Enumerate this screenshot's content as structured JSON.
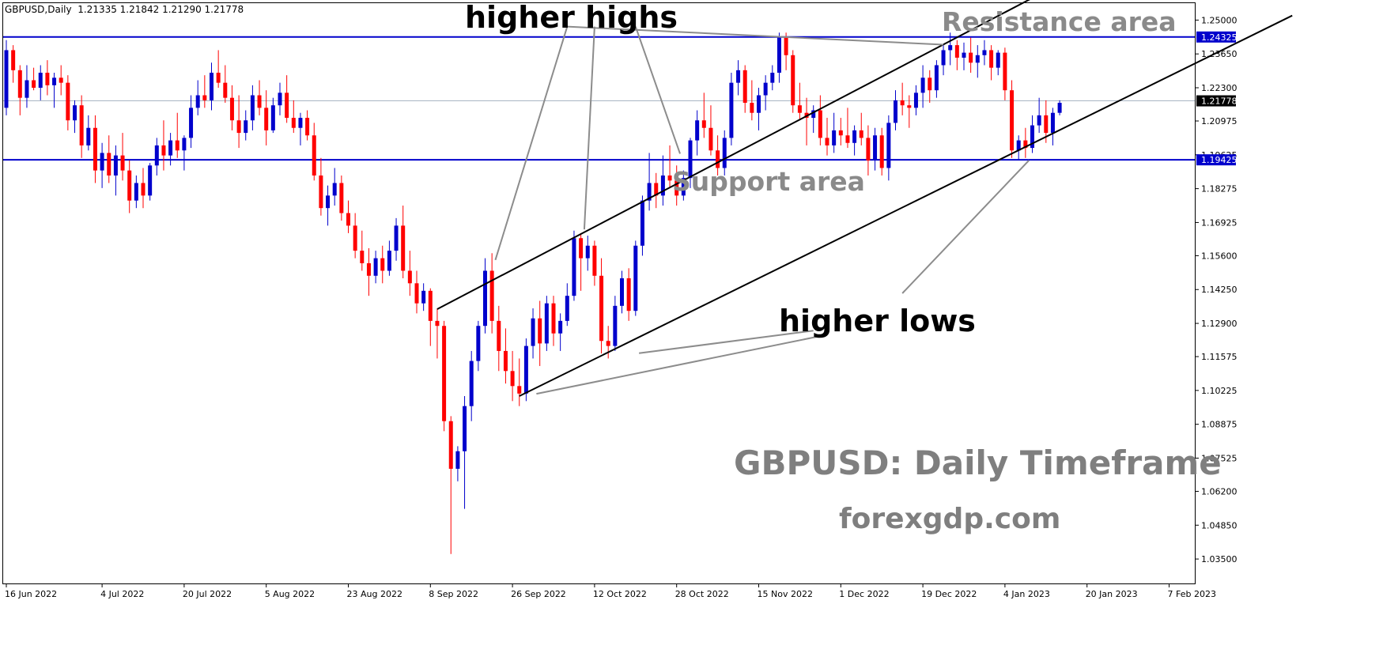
{
  "header": {
    "symbol": "GBPUSD,Daily",
    "ohlc": "1.21335 1.21842 1.21290 1.21778"
  },
  "annotations": {
    "higher_highs": "higher highs",
    "higher_lows": "higher lows",
    "resistance": "Resistance area",
    "support": "Support area",
    "title": "GBPUSD: Daily Timeframe",
    "site": "forexgdp.com"
  },
  "colors": {
    "bull": "#0000cc",
    "bear": "#ff0000",
    "level": "#0000cc",
    "trendline": "#000000",
    "pointer": "#8c8c8c",
    "price_line": "#a9b5c4"
  },
  "chart_data": {
    "type": "candlestick",
    "ylim": [
      1.02525,
      1.25675
    ],
    "y_ticks": [
      "1.25000",
      "1.23650",
      "1.22300",
      "1.20975",
      "1.19625",
      "1.18275",
      "1.16925",
      "1.15600",
      "1.14250",
      "1.12900",
      "1.11575",
      "1.10225",
      "1.08875",
      "1.07525",
      "1.06200",
      "1.04850",
      "1.03500"
    ],
    "x_ticks": [
      "16 Jun 2022",
      "4 Jul 2022",
      "20 Jul 2022",
      "5 Aug 2022",
      "23 Aug 2022",
      "8 Sep 2022",
      "26 Sep 2022",
      "12 Oct 2022",
      "28 Oct 2022",
      "15 Nov 2022",
      "1 Dec 2022",
      "19 Dec 2022",
      "4 Jan 2023",
      "20 Jan 2023",
      "7 Feb 2023"
    ],
    "x_tick_index": [
      0,
      14,
      26,
      38,
      50,
      62,
      74,
      86,
      98,
      110,
      122,
      134,
      146,
      158,
      170
    ],
    "levels": [
      {
        "label": "1.24325",
        "value": 1.24325
      },
      {
        "label": "1.19425",
        "value": 1.19425
      }
    ],
    "current_price": {
      "label": "1.21778",
      "value": 1.21778
    },
    "candles": [
      [
        1.215,
        1.242,
        1.212,
        1.238
      ],
      [
        1.238,
        1.24,
        1.225,
        1.23
      ],
      [
        1.23,
        1.232,
        1.212,
        1.219
      ],
      [
        1.219,
        1.232,
        1.215,
        1.226
      ],
      [
        1.226,
        1.231,
        1.222,
        1.223
      ],
      [
        1.223,
        1.232,
        1.218,
        1.229
      ],
      [
        1.229,
        1.234,
        1.22,
        1.224
      ],
      [
        1.224,
        1.229,
        1.215,
        1.227
      ],
      [
        1.227,
        1.232,
        1.22,
        1.225
      ],
      [
        1.225,
        1.228,
        1.206,
        1.21
      ],
      [
        1.21,
        1.218,
        1.205,
        1.216
      ],
      [
        1.216,
        1.22,
        1.195,
        1.2
      ],
      [
        1.2,
        1.212,
        1.198,
        1.207
      ],
      [
        1.207,
        1.212,
        1.185,
        1.19
      ],
      [
        1.19,
        1.201,
        1.183,
        1.197
      ],
      [
        1.197,
        1.204,
        1.185,
        1.188
      ],
      [
        1.188,
        1.2,
        1.18,
        1.196
      ],
      [
        1.196,
        1.205,
        1.186,
        1.19
      ],
      [
        1.19,
        1.194,
        1.173,
        1.178
      ],
      [
        1.178,
        1.188,
        1.175,
        1.185
      ],
      [
        1.185,
        1.191,
        1.175,
        1.18
      ],
      [
        1.18,
        1.193,
        1.178,
        1.192
      ],
      [
        1.192,
        1.203,
        1.188,
        1.2
      ],
      [
        1.2,
        1.21,
        1.19,
        1.196
      ],
      [
        1.196,
        1.205,
        1.192,
        1.202
      ],
      [
        1.202,
        1.213,
        1.195,
        1.198
      ],
      [
        1.198,
        1.204,
        1.19,
        1.203
      ],
      [
        1.203,
        1.22,
        1.199,
        1.215
      ],
      [
        1.215,
        1.226,
        1.212,
        1.22
      ],
      [
        1.22,
        1.228,
        1.215,
        1.218
      ],
      [
        1.218,
        1.233,
        1.214,
        1.229
      ],
      [
        1.229,
        1.238,
        1.223,
        1.225
      ],
      [
        1.225,
        1.232,
        1.217,
        1.219
      ],
      [
        1.219,
        1.224,
        1.206,
        1.21
      ],
      [
        1.21,
        1.22,
        1.199,
        1.205
      ],
      [
        1.205,
        1.214,
        1.202,
        1.21
      ],
      [
        1.21,
        1.224,
        1.206,
        1.22
      ],
      [
        1.22,
        1.226,
        1.212,
        1.215
      ],
      [
        1.215,
        1.222,
        1.2,
        1.206
      ],
      [
        1.206,
        1.219,
        1.205,
        1.216
      ],
      [
        1.216,
        1.225,
        1.212,
        1.221
      ],
      [
        1.221,
        1.228,
        1.209,
        1.211
      ],
      [
        1.211,
        1.218,
        1.205,
        1.207
      ],
      [
        1.207,
        1.213,
        1.2,
        1.211
      ],
      [
        1.211,
        1.214,
        1.202,
        1.204
      ],
      [
        1.204,
        1.209,
        1.186,
        1.188
      ],
      [
        1.188,
        1.195,
        1.172,
        1.175
      ],
      [
        1.175,
        1.184,
        1.168,
        1.18
      ],
      [
        1.18,
        1.191,
        1.176,
        1.185
      ],
      [
        1.185,
        1.188,
        1.17,
        1.173
      ],
      [
        1.173,
        1.178,
        1.165,
        1.168
      ],
      [
        1.168,
        1.173,
        1.155,
        1.158
      ],
      [
        1.158,
        1.166,
        1.15,
        1.153
      ],
      [
        1.153,
        1.159,
        1.14,
        1.148
      ],
      [
        1.148,
        1.158,
        1.145,
        1.155
      ],
      [
        1.155,
        1.16,
        1.145,
        1.15
      ],
      [
        1.15,
        1.162,
        1.148,
        1.158
      ],
      [
        1.158,
        1.171,
        1.154,
        1.168
      ],
      [
        1.168,
        1.176,
        1.147,
        1.15
      ],
      [
        1.15,
        1.158,
        1.14,
        1.145
      ],
      [
        1.145,
        1.15,
        1.133,
        1.137
      ],
      [
        1.137,
        1.145,
        1.134,
        1.142
      ],
      [
        1.142,
        1.143,
        1.12,
        1.13
      ],
      [
        1.13,
        1.135,
        1.115,
        1.128
      ],
      [
        1.128,
        1.13,
        1.086,
        1.09
      ],
      [
        1.09,
        1.092,
        1.037,
        1.071
      ],
      [
        1.071,
        1.08,
        1.066,
        1.078
      ],
      [
        1.078,
        1.1,
        1.055,
        1.096
      ],
      [
        1.096,
        1.118,
        1.09,
        1.114
      ],
      [
        1.114,
        1.13,
        1.11,
        1.128
      ],
      [
        1.128,
        1.155,
        1.125,
        1.15
      ],
      [
        1.15,
        1.157,
        1.125,
        1.13
      ],
      [
        1.13,
        1.136,
        1.11,
        1.118
      ],
      [
        1.118,
        1.127,
        1.105,
        1.11
      ],
      [
        1.11,
        1.118,
        1.098,
        1.104
      ],
      [
        1.104,
        1.115,
        1.096,
        1.101
      ],
      [
        1.101,
        1.123,
        1.098,
        1.12
      ],
      [
        1.12,
        1.135,
        1.115,
        1.131
      ],
      [
        1.131,
        1.138,
        1.112,
        1.121
      ],
      [
        1.121,
        1.14,
        1.118,
        1.137
      ],
      [
        1.137,
        1.14,
        1.12,
        1.125
      ],
      [
        1.125,
        1.133,
        1.118,
        1.13
      ],
      [
        1.13,
        1.145,
        1.128,
        1.14
      ],
      [
        1.14,
        1.166,
        1.138,
        1.163
      ],
      [
        1.163,
        1.165,
        1.142,
        1.155
      ],
      [
        1.155,
        1.164,
        1.15,
        1.16
      ],
      [
        1.16,
        1.162,
        1.144,
        1.148
      ],
      [
        1.148,
        1.155,
        1.117,
        1.122
      ],
      [
        1.122,
        1.128,
        1.115,
        1.12
      ],
      [
        1.12,
        1.14,
        1.118,
        1.136
      ],
      [
        1.136,
        1.15,
        1.133,
        1.147
      ],
      [
        1.147,
        1.151,
        1.13,
        1.134
      ],
      [
        1.134,
        1.162,
        1.132,
        1.16
      ],
      [
        1.16,
        1.18,
        1.156,
        1.178
      ],
      [
        1.178,
        1.197,
        1.174,
        1.185
      ],
      [
        1.185,
        1.189,
        1.175,
        1.18
      ],
      [
        1.18,
        1.196,
        1.176,
        1.188
      ],
      [
        1.188,
        1.2,
        1.183,
        1.186
      ],
      [
        1.186,
        1.192,
        1.176,
        1.18
      ],
      [
        1.18,
        1.19,
        1.178,
        1.187
      ],
      [
        1.187,
        1.203,
        1.183,
        1.202
      ],
      [
        1.202,
        1.214,
        1.196,
        1.21
      ],
      [
        1.21,
        1.221,
        1.203,
        1.207
      ],
      [
        1.207,
        1.216,
        1.196,
        1.198
      ],
      [
        1.198,
        1.204,
        1.188,
        1.191
      ],
      [
        1.191,
        1.206,
        1.188,
        1.203
      ],
      [
        1.203,
        1.229,
        1.2,
        1.225
      ],
      [
        1.225,
        1.234,
        1.22,
        1.23
      ],
      [
        1.23,
        1.232,
        1.213,
        1.217
      ],
      [
        1.217,
        1.226,
        1.21,
        1.213
      ],
      [
        1.213,
        1.223,
        1.206,
        1.22
      ],
      [
        1.22,
        1.228,
        1.214,
        1.225
      ],
      [
        1.225,
        1.232,
        1.222,
        1.229
      ],
      [
        1.229,
        1.245,
        1.225,
        1.243
      ],
      [
        1.243,
        1.245,
        1.23,
        1.236
      ],
      [
        1.236,
        1.238,
        1.213,
        1.216
      ],
      [
        1.216,
        1.225,
        1.21,
        1.213
      ],
      [
        1.213,
        1.219,
        1.2,
        1.211
      ],
      [
        1.211,
        1.216,
        1.205,
        1.214
      ],
      [
        1.214,
        1.22,
        1.2,
        1.203
      ],
      [
        1.203,
        1.211,
        1.196,
        1.2
      ],
      [
        1.2,
        1.213,
        1.197,
        1.206
      ],
      [
        1.206,
        1.211,
        1.2,
        1.204
      ],
      [
        1.204,
        1.215,
        1.199,
        1.201
      ],
      [
        1.201,
        1.208,
        1.196,
        1.206
      ],
      [
        1.206,
        1.213,
        1.2,
        1.203
      ],
      [
        1.203,
        1.208,
        1.188,
        1.194
      ],
      [
        1.194,
        1.207,
        1.19,
        1.204
      ],
      [
        1.204,
        1.207,
        1.188,
        1.191
      ],
      [
        1.191,
        1.212,
        1.186,
        1.209
      ],
      [
        1.209,
        1.222,
        1.206,
        1.218
      ],
      [
        1.218,
        1.225,
        1.212,
        1.216
      ],
      [
        1.216,
        1.22,
        1.207,
        1.215
      ],
      [
        1.215,
        1.224,
        1.212,
        1.221
      ],
      [
        1.221,
        1.232,
        1.215,
        1.227
      ],
      [
        1.227,
        1.23,
        1.217,
        1.222
      ],
      [
        1.222,
        1.234,
        1.219,
        1.232
      ],
      [
        1.232,
        1.24,
        1.228,
        1.238
      ],
      [
        1.238,
        1.245,
        1.232,
        1.24
      ],
      [
        1.24,
        1.242,
        1.23,
        1.235
      ],
      [
        1.235,
        1.241,
        1.23,
        1.237
      ],
      [
        1.237,
        1.243,
        1.229,
        1.233
      ],
      [
        1.233,
        1.24,
        1.227,
        1.236
      ],
      [
        1.236,
        1.242,
        1.232,
        1.238
      ],
      [
        1.238,
        1.24,
        1.226,
        1.231
      ],
      [
        1.231,
        1.238,
        1.228,
        1.237
      ],
      [
        1.237,
        1.239,
        1.218,
        1.222
      ],
      [
        1.222,
        1.226,
        1.195,
        1.198
      ],
      [
        1.198,
        1.204,
        1.194,
        1.202
      ],
      [
        1.202,
        1.207,
        1.195,
        1.199
      ],
      [
        1.199,
        1.212,
        1.197,
        1.208
      ],
      [
        1.208,
        1.219,
        1.205,
        1.212
      ],
      [
        1.212,
        1.218,
        1.201,
        1.205
      ],
      [
        1.205,
        1.215,
        1.2,
        1.213
      ],
      [
        1.213,
        1.218,
        1.212,
        1.217
      ]
    ],
    "trendlines": [
      {
        "name": "channel-top",
        "points": [
          [
            63,
            1.1347
          ],
          [
            150,
            1.2588
          ]
        ]
      },
      {
        "name": "channel-bottom",
        "points": [
          [
            75,
            1.1
          ],
          [
            188,
            1.2518
          ]
        ]
      }
    ],
    "pointer_lines": [
      {
        "from": [
          82,
          1.2474
        ],
        "to": [
          137,
          1.2402
        ]
      },
      {
        "from": [
          82,
          1.2474
        ],
        "to": [
          71.5,
          1.1543
        ]
      },
      {
        "from": [
          86,
          1.2474
        ],
        "to": [
          84.5,
          1.1665
        ]
      },
      {
        "from": [
          92,
          1.2474
        ],
        "to": [
          98.5,
          1.1967
        ]
      },
      {
        "from": [
          118,
          1.1261
        ],
        "to": [
          92.5,
          1.1171
        ]
      },
      {
        "from": [
          120,
          1.1245
        ],
        "to": [
          77.5,
          1.1009
        ]
      },
      {
        "from": [
          131,
          1.141
        ],
        "to": [
          149.5,
          1.194
        ]
      }
    ]
  }
}
